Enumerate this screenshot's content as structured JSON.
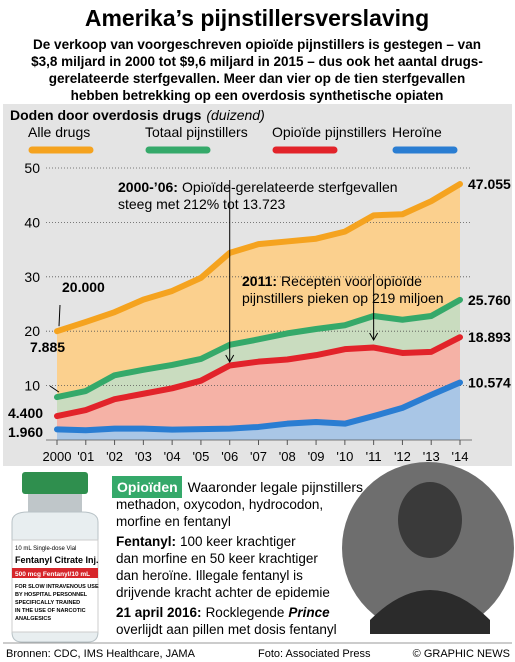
{
  "header": {
    "title": "Amerika’s pijnstillersverslaving",
    "subtitle": [
      "De verkoop van voorgeschreven opioïde pijnstillers is gestegen – van",
      "$3,8 miljard in 2000 tot $9,6 miljard in 2015 – dus ook het aantal drugs-",
      "gerelateerde sterfgevallen. Meer dan vier op de tien sterfgevallen",
      "hebben betrekking op een overdosis synthetische opiaten"
    ]
  },
  "chart_data": {
    "type": "line",
    "title": "Doden door overdosis drugs",
    "unit": "(duizend)",
    "categories": [
      "2000",
      "'01",
      "'02",
      "'03",
      "'04",
      "'05",
      "'06",
      "'07",
      "'08",
      "'09",
      "'10",
      "'11",
      "'12",
      "'13",
      "'14"
    ],
    "series": [
      {
        "name": "Alle drugs",
        "color": "#f5a31f",
        "area_color": "#fbd08e",
        "values": [
          20.0,
          21.7,
          23.5,
          25.8,
          27.4,
          29.8,
          34.4,
          36.0,
          36.5,
          37.0,
          38.3,
          41.3,
          41.5,
          43.9,
          47.055
        ],
        "value_labels": [
          "20.000",
          null,
          null,
          null,
          null,
          null,
          null,
          null,
          null,
          null,
          null,
          null,
          null,
          null,
          "47.055"
        ]
      },
      {
        "name": "Totaal pijnstillers",
        "color": "#35a96a",
        "area_color": "#c9dcbf",
        "values": [
          7.885,
          9.0,
          11.9,
          12.9,
          13.8,
          14.9,
          17.5,
          18.5,
          19.6,
          20.4,
          21.1,
          22.8,
          22.1,
          22.8,
          25.76
        ],
        "value_labels": [
          "7.885",
          null,
          null,
          null,
          null,
          null,
          null,
          null,
          null,
          null,
          null,
          null,
          null,
          null,
          "25.760"
        ]
      },
      {
        "name": "Opioïde pijnstillers",
        "color": "#e2232a",
        "area_color": "#f5b2a6",
        "values": [
          4.4,
          5.5,
          7.5,
          8.5,
          9.5,
          10.9,
          13.7,
          14.4,
          14.8,
          15.6,
          16.7,
          17.0,
          16.0,
          16.2,
          18.893
        ],
        "value_labels": [
          "4.400",
          null,
          null,
          null,
          null,
          null,
          null,
          null,
          null,
          null,
          null,
          null,
          null,
          null,
          "18.893"
        ]
      },
      {
        "name": "Heroïne",
        "color": "#2a7dd2",
        "area_color": "#a9c6e6",
        "values": [
          1.96,
          1.8,
          2.1,
          2.1,
          1.9,
          2.0,
          2.1,
          2.4,
          3.0,
          3.3,
          3.0,
          4.4,
          5.9,
          8.3,
          10.574
        ],
        "value_labels": [
          "1.960",
          null,
          null,
          null,
          null,
          null,
          null,
          null,
          null,
          null,
          null,
          null,
          null,
          null,
          "10.574"
        ]
      }
    ],
    "ylim": [
      0,
      50
    ],
    "yticks": [
      10,
      20,
      30,
      40,
      50
    ],
    "grid": true,
    "annotations": [
      {
        "lead": "2000-’06:",
        "lines": [
          "Opioïde-gerelateerde sterfgevallen",
          "steeg met 212% tot 13.723"
        ]
      },
      {
        "lead": "2011:",
        "lines": [
          "Recepten voor opioïde",
          "pijnstillers pieken op 219 miljoen"
        ]
      }
    ],
    "watermark": [
      "GN",
      "GRAPHIC NEWS"
    ]
  },
  "vial": {
    "lines": [
      "10 mL Single-dose Vial",
      "Fentanyl Citrate Inj.",
      "500 mcg Fentanyl/10 mL",
      "FOR SLOW INTRAVENOUS USE",
      "BY HOSPITAL PERSONNEL",
      "SPECIFICALLY TRAINED",
      "IN THE USE OF NARCOTIC",
      "ANALGESICS"
    ]
  },
  "sidebar": {
    "heading": "Opioïden",
    "heading_rest": "Waaronder legale pijnstillers",
    "lines": [
      "methadon, oxycodon, hydrocodon,",
      "morfine en fentanyl"
    ],
    "fentanyl": {
      "lead": "Fentanyl:",
      "first": "100 keer krachtiger",
      "lines": [
        "dan morfine en 50 keer krachtiger",
        "dan heroïne. Illegale fentanyl is",
        "drijvende kracht achter de epidemie"
      ]
    },
    "prince": {
      "lead": "21 april 2016:",
      "text": "Rocklegende",
      "name": "Prince",
      "line2": "overlijdt aan pillen met dosis fentanyl"
    }
  },
  "footer": {
    "sources": "Bronnen: CDC, IMS Healthcare, JAMA",
    "photo": "Foto: Associated Press",
    "copyright": "© GRAPHIC NEWS"
  }
}
